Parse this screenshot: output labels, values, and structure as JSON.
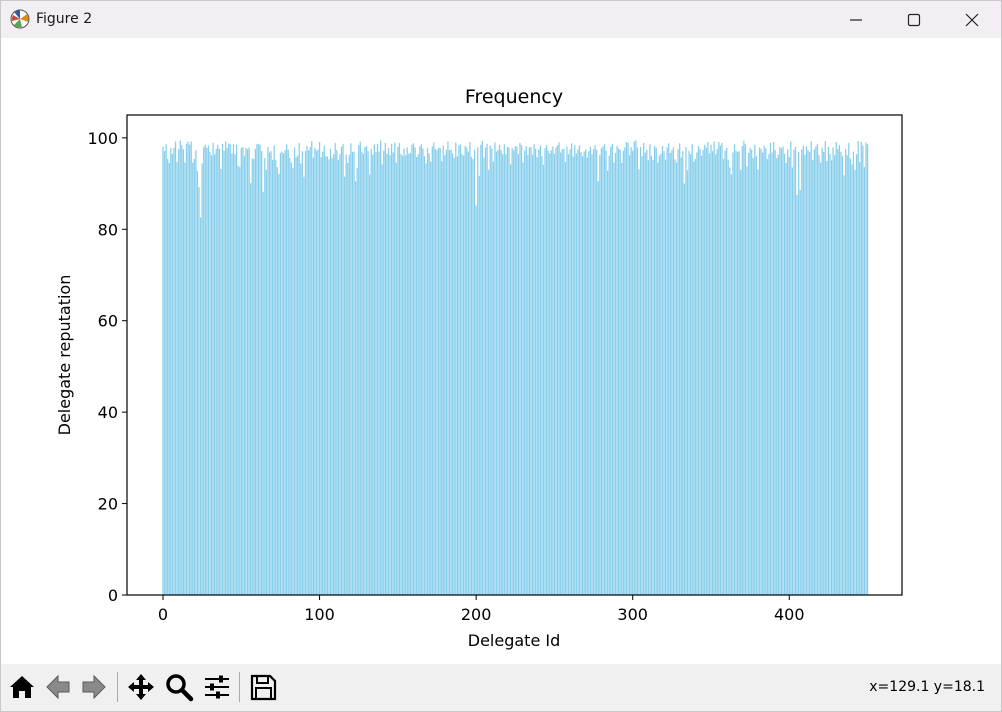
{
  "window": {
    "title": "Figure 2",
    "icons": [
      "matplotlib-logo-icon",
      "minimize-icon",
      "maximize-icon",
      "close-icon"
    ]
  },
  "toolbar": {
    "buttons": [
      {
        "name": "home-button",
        "icon": "home-icon"
      },
      {
        "name": "back-button",
        "icon": "arrow-left-icon"
      },
      {
        "name": "forward-button",
        "icon": "arrow-right-icon"
      },
      {
        "name": "pan-button",
        "icon": "move-icon"
      },
      {
        "name": "zoom-button",
        "icon": "magnifier-icon"
      },
      {
        "name": "configure-subplots-button",
        "icon": "sliders-icon"
      },
      {
        "name": "save-button",
        "icon": "floppy-disk-icon"
      }
    ],
    "coords": "x=129.1 y=18.1"
  },
  "chart_data": {
    "type": "bar",
    "title": "Frequency",
    "xlabel": "Delegate Id",
    "ylabel": "Delegate reputation",
    "xlim": [
      -23,
      472
    ],
    "ylim": [
      0,
      105
    ],
    "xticks": [
      0,
      100,
      200,
      300,
      400
    ],
    "yticks": [
      0,
      20,
      40,
      60,
      80,
      100
    ],
    "xtick_labels": [
      "0",
      "100",
      "200",
      "300",
      "400"
    ],
    "ytick_labels": [
      "0",
      "20",
      "40",
      "60",
      "80",
      "100"
    ],
    "bar_color": "#87ceeb",
    "grid": false,
    "x_start": 0,
    "values": [
      98.0,
      97.1,
      98.6,
      95.4,
      94.5,
      97.7,
      96.5,
      97.8,
      99.2,
      94.7,
      97.5,
      99.4,
      98.4,
      97.5,
      94.6,
      98.7,
      99.2,
      98.5,
      99.2,
      94.6,
      95.4,
      97.3,
      92.7,
      89.2,
      82.6,
      94.4,
      98.0,
      98.5,
      97.8,
      98.3,
      96.9,
      96.2,
      98.9,
      96.4,
      97.6,
      98.5,
      97.6,
      93.2,
      98.7,
      97.2,
      99.2,
      97.8,
      98.8,
      98.6,
      96.6,
      98.6,
      96.4,
      98.5,
      93.9,
      93.6,
      97.8,
      98.0,
      96.0,
      97.8,
      97.5,
      97.9,
      90.1,
      95.5,
      95.4,
      97.6,
      98.7,
      98.6,
      98.5,
      97.1,
      88.2,
      95.6,
      93.0,
      98.0,
      96.8,
      97.1,
      95.2,
      98.3,
      95.2,
      93.6,
      92.1,
      96.7,
      97.0,
      96.6,
      97.3,
      98.6,
      97.4,
      95.6,
      94.6,
      93.4,
      97.9,
      95.8,
      96.1,
      98.9,
      94.4,
      97.1,
      91.5,
      97.1,
      98.2,
      97.3,
      98.0,
      99.3,
      95.7,
      97.8,
      97.2,
      97.4,
      99.1,
      95.8,
      97.0,
      98.3,
      96.0,
      95.9,
      95.3,
      97.6,
      95.6,
      96.4,
      98.9,
      97.3,
      95.2,
      96.4,
      98.1,
      98.7,
      91.5,
      96.3,
      94.5,
      96.3,
      98.8,
      96.9,
      97.0,
      90.5,
      93.4,
      98.4,
      99.2,
      96.9,
      96.5,
      98.0,
      98.2,
      97.1,
      92.0,
      97.5,
      96.3,
      98.6,
      96.9,
      98.7,
      97.0,
      99.4,
      94.2,
      97.2,
      98.9,
      96.5,
      97.8,
      96.2,
      98.7,
      96.8,
      99.0,
      94.6,
      98.0,
      98.9,
      96.5,
      96.1,
      97.6,
      96.2,
      97.9,
      96.5,
      96.7,
      98.5,
      98.8,
      97.9,
      95.8,
      96.4,
      98.1,
      98.6,
      97.7,
      96.0,
      94.4,
      97.8,
      96.6,
      94.8,
      98.1,
      99.0,
      97.5,
      97.3,
      97.8,
      97.8,
      94.9,
      98.3,
      96.2,
      97.4,
      99.2,
      97.3,
      97.4,
      96.6,
      95.6,
      99.0,
      95.9,
      98.3,
      98.6,
      96.5,
      96.1,
      98.2,
      97.9,
      97.0,
      99.1,
      95.8,
      95.4,
      97.4,
      85.2,
      97.9,
      91.7,
      98.5,
      99.3,
      95.7,
      97.9,
      98.7,
      93.0,
      98.3,
      97.6,
      94.8,
      99.0,
      97.0,
      97.4,
      98.5,
      97.3,
      96.4,
      98.6,
      96.4,
      98.0,
      97.9,
      94.2,
      97.8,
      97.3,
      98.2,
      98.1,
      96.4,
      98.9,
      98.4,
      94.6,
      97.2,
      98.2,
      96.2,
      97.9,
      98.0,
      96.3,
      98.6,
      97.6,
      95.8,
      97.5,
      98.3,
      96.0,
      94.1,
      97.7,
      98.4,
      97.2,
      96.6,
      97.3,
      98.1,
      96.5,
      97.9,
      98.4,
      99.0,
      96.8,
      97.5,
      97.6,
      94.7,
      98.1,
      96.4,
      97.5,
      98.8,
      95.9,
      98.4,
      96.6,
      97.5,
      98.3,
      96.9,
      96.0,
      97.0,
      97.5,
      95.7,
      97.1,
      98.0,
      96.4,
      97.5,
      98.4,
      97.4,
      90.5,
      96.2,
      97.7,
      98.1,
      98.6,
      97.2,
      92.8,
      96.1,
      98.1,
      98.7,
      94.6,
      96.7,
      98.2,
      97.7,
      97.4,
      94.5,
      97.2,
      97.9,
      99.1,
      98.9,
      96.2,
      98.0,
      97.2,
      99.2,
      99.5,
      97.9,
      93.1,
      98.0,
      96.0,
      98.9,
      96.8,
      97.4,
      95.1,
      98.6,
      96.1,
      95.2,
      98.2,
      97.8,
      94.6,
      96.1,
      96.5,
      98.2,
      97.1,
      95.2,
      97.9,
      98.8,
      96.7,
      97.3,
      97.9,
      95.3,
      94.6,
      97.5,
      98.8,
      95.7,
      97.1,
      90.0,
      98.0,
      92.9,
      97.2,
      96.4,
      98.6,
      94.8,
      95.4,
      96.8,
      98.2,
      97.6,
      96.1,
      97.4,
      98.5,
      97.9,
      99.1,
      96.6,
      98.5,
      97.1,
      99.2,
      96.4,
      97.6,
      99.1,
      98.3,
      98.9,
      95.4,
      97.2,
      97.8,
      95.2,
      93.5,
      92.0,
      96.8,
      98.6,
      97.2,
      96.9,
      97.1,
      93.0,
      98.2,
      99.4,
      98.6,
      93.8,
      96.7,
      97.8,
      97.4,
      95.6,
      98.5,
      96.0,
      93.1,
      97.9,
      97.6,
      96.8,
      98.2,
      97.7,
      95.4,
      96.4,
      98.9,
      96.8,
      99.1,
      97.3,
      95.6,
      96.3,
      98.0,
      97.7,
      98.1,
      96.5,
      94.5,
      97.5,
      95.8,
      99.2,
      93.5,
      97.4,
      98.0,
      87.5,
      96.9,
      88.6,
      97.5,
      98.3,
      96.3,
      98.2,
      97.3,
      96.9,
      99.3,
      95.2,
      97.5,
      98.1,
      98.7,
      96.2,
      94.6,
      97.8,
      96.9,
      99.3,
      94.9,
      98.0,
      96.5,
      95.1,
      97.9,
      96.2,
      99.1,
      97.5,
      98.4,
      97.0,
      96.0,
      91.8,
      97.5,
      96.2,
      98.9,
      95.5,
      94.2,
      97.0,
      93.0,
      96.4,
      99.3,
      94.7,
      99.1,
      98.3,
      93.6,
      99.0,
      98.6
    ]
  }
}
